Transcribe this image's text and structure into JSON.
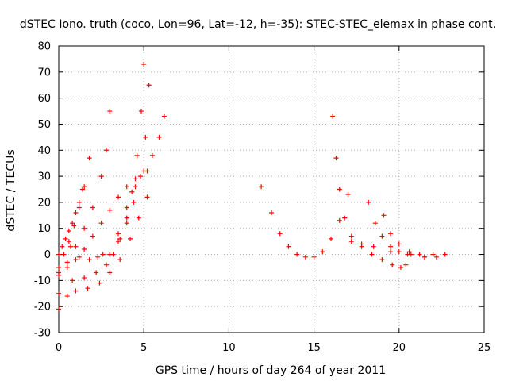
{
  "chart_data": {
    "type": "scatter",
    "title": "dSTEC Iono. truth (coco, Lon=96, Lat=-12, h=-35): STEC-STEC_elemax in phase cont.",
    "xlabel": "GPS time / hours of day 264 of year 2011",
    "ylabel": "dSTEC  / TECUs",
    "xlim": [
      0,
      25
    ],
    "ylim": [
      -30,
      80
    ],
    "xticks": [
      0,
      5,
      10,
      15,
      20,
      25
    ],
    "yticks": [
      -30,
      -20,
      -10,
      0,
      10,
      20,
      30,
      40,
      50,
      60,
      70,
      80
    ],
    "grid": true,
    "marker": "+",
    "color": "#ff0000",
    "series": [
      {
        "x": [
          0.0,
          0.2,
          0.4,
          0.6,
          0.8,
          1.0,
          1.2,
          1.4
        ],
        "y": [
          0,
          3,
          6,
          9,
          12,
          16,
          20,
          25
        ]
      },
      {
        "x": [
          0.0,
          0.3,
          0.6,
          0.9,
          1.2,
          1.5,
          1.8
        ],
        "y": [
          -5,
          0,
          5,
          11,
          18,
          26,
          37
        ]
      },
      {
        "x": [
          0.0,
          0.5,
          1.0,
          1.5,
          2.0,
          2.5,
          2.8,
          3.0
        ],
        "y": [
          -8,
          -3,
          3,
          10,
          18,
          30,
          40,
          55
        ]
      },
      {
        "x": [
          0.7,
          1.2,
          1.8,
          2.3,
          2.6,
          3.0
        ],
        "y": [
          3,
          -1,
          -2,
          -1,
          0,
          0
        ]
      },
      {
        "x": [
          0.0,
          0.5,
          1.0,
          1.5,
          2.0,
          2.5,
          3.0,
          3.5,
          4.0,
          4.5,
          5.2
        ],
        "y": [
          -7,
          -5,
          -2,
          2,
          7,
          12,
          17,
          22,
          26,
          29,
          32
        ]
      },
      {
        "x": [
          0.0,
          0.8,
          1.5,
          2.2,
          2.8,
          3.2,
          3.6,
          4.0,
          4.3,
          4.6,
          4.85,
          5.0
        ],
        "y": [
          -15,
          -10,
          -9,
          -7,
          -4,
          0,
          6,
          14,
          24,
          38,
          55,
          73
        ]
      },
      {
        "x": [
          3.5,
          4.0,
          4.4,
          4.8,
          5.1,
          5.3
        ],
        "y": [
          5,
          12,
          20,
          30,
          45,
          65
        ]
      },
      {
        "x": [
          0.0,
          0.5,
          1.0,
          1.7,
          2.4,
          3.0,
          3.6,
          4.2,
          4.7,
          5.2
        ],
        "y": [
          -21,
          -16,
          -14,
          -13,
          -11,
          -7,
          -2,
          6,
          14,
          22
        ]
      },
      {
        "x": [
          3.0,
          3.5,
          4.0,
          4.5,
          5.0,
          5.5,
          5.9,
          6.2
        ],
        "y": [
          0,
          8,
          18,
          26,
          32,
          38,
          45,
          53
        ]
      },
      {
        "x": [
          11.9,
          12.5,
          13.0,
          13.5,
          14.0,
          14.5,
          15.0,
          15.5,
          16.0,
          16.5,
          17.0
        ],
        "y": [
          26,
          16,
          8,
          3,
          0,
          -1,
          -1,
          1,
          6,
          13,
          23
        ]
      },
      {
        "x": [
          16.1,
          16.3,
          16.5,
          16.8,
          17.2,
          17.8,
          18.4,
          19.0,
          19.6,
          20.1,
          20.4
        ],
        "y": [
          53,
          37,
          25,
          14,
          7,
          3,
          0,
          -2,
          -4,
          -5,
          -4
        ]
      },
      {
        "x": [
          17.2,
          17.8,
          18.5,
          19.5,
          20.5,
          21.5
        ],
        "y": [
          5,
          4,
          3,
          1,
          0,
          -1
        ]
      },
      {
        "x": [
          18.2,
          18.6,
          19.0,
          19.5,
          20.0,
          20.7,
          21.5,
          22.2
        ],
        "y": [
          20,
          12,
          7,
          3,
          1,
          0,
          -1,
          -1
        ]
      },
      {
        "x": [
          19.1,
          19.5,
          20.0,
          20.6,
          21.2,
          22.0,
          22.7
        ],
        "y": [
          15,
          8,
          4,
          1,
          0,
          0,
          0
        ]
      }
    ]
  }
}
